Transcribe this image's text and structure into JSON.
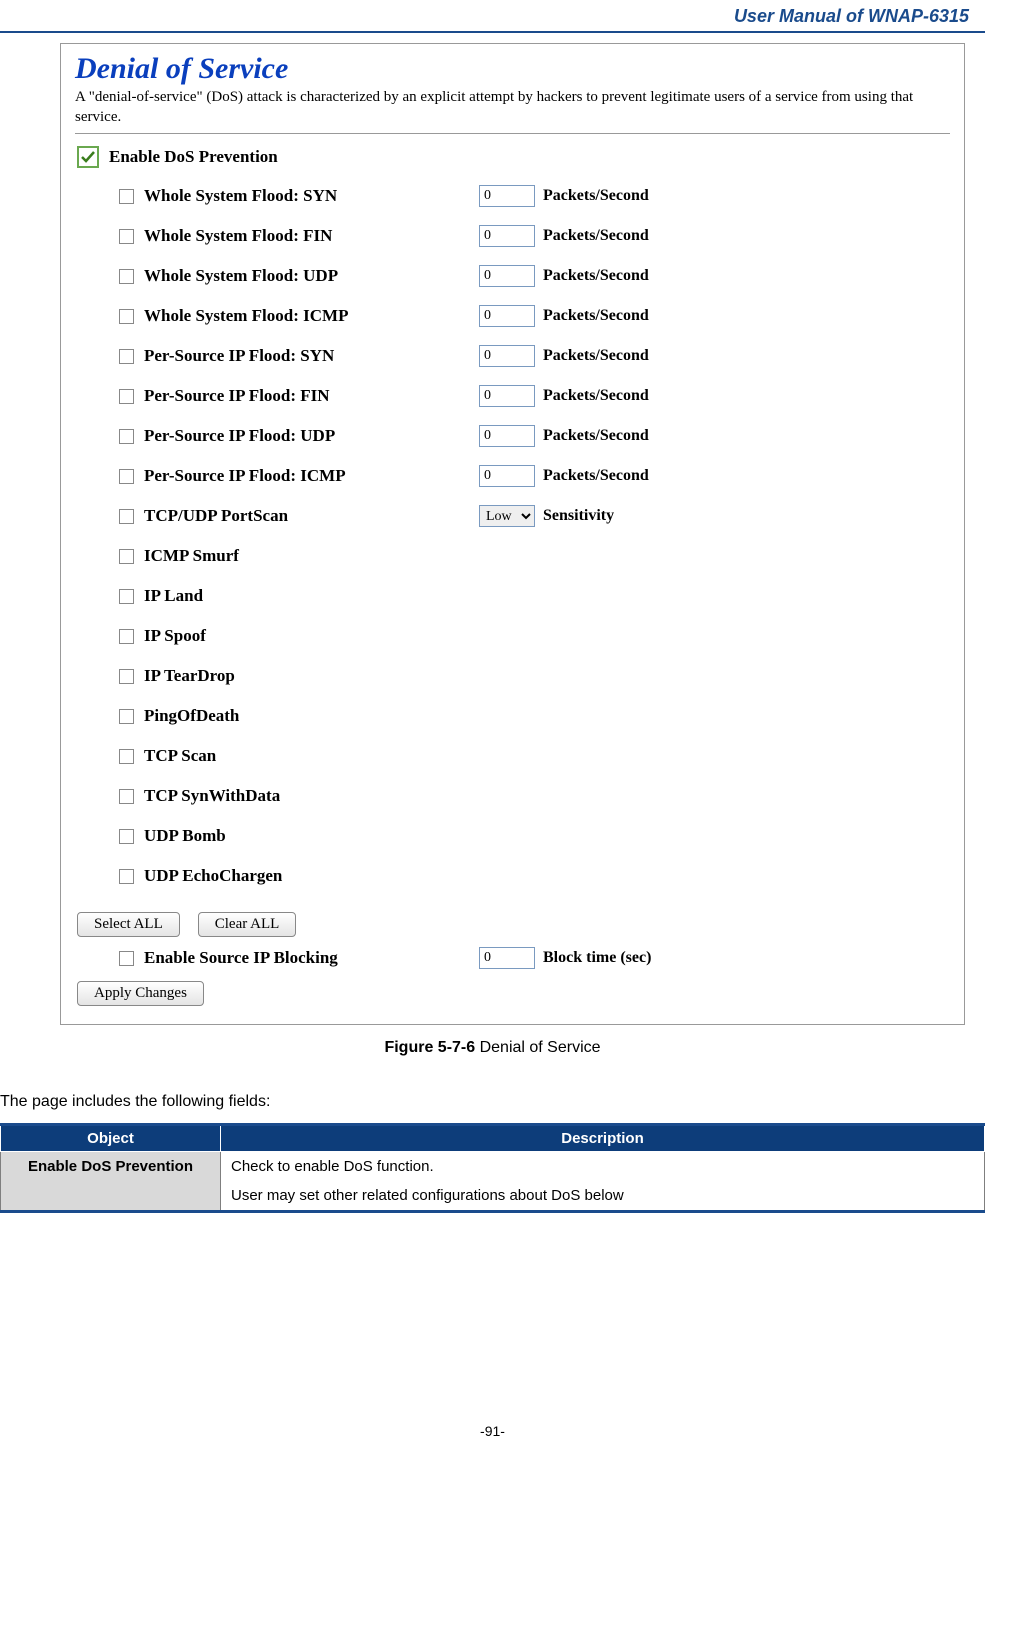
{
  "header": {
    "title": "User Manual of WNAP-6315"
  },
  "panel": {
    "title": "Denial of Service",
    "description": "A \"denial-of-service\" (DoS) attack is characterized by an explicit attempt by hackers to prevent legitimate users of a service from using that service.",
    "enable_label": "Enable DoS Prevention",
    "enable_checked": true,
    "packets_unit": "Packets/Second",
    "sensitivity_label": "Sensitivity",
    "sensitivity_value": "Low",
    "items": [
      {
        "label": "Whole System Flood: SYN",
        "value": "0",
        "has_value": true,
        "unit": "Packets/Second"
      },
      {
        "label": "Whole System Flood: FIN",
        "value": "0",
        "has_value": true,
        "unit": "Packets/Second"
      },
      {
        "label": "Whole System Flood: UDP",
        "value": "0",
        "has_value": true,
        "unit": "Packets/Second"
      },
      {
        "label": "Whole System Flood: ICMP",
        "value": "0",
        "has_value": true,
        "unit": "Packets/Second"
      },
      {
        "label": "Per-Source IP Flood: SYN",
        "value": "0",
        "has_value": true,
        "unit": "Packets/Second"
      },
      {
        "label": "Per-Source IP Flood: FIN",
        "value": "0",
        "has_value": true,
        "unit": "Packets/Second"
      },
      {
        "label": "Per-Source IP Flood: UDP",
        "value": "0",
        "has_value": true,
        "unit": "Packets/Second"
      },
      {
        "label": "Per-Source IP Flood: ICMP",
        "value": "0",
        "has_value": true,
        "unit": "Packets/Second"
      },
      {
        "label": "TCP/UDP PortScan",
        "has_select": true
      },
      {
        "label": "ICMP Smurf"
      },
      {
        "label": "IP Land"
      },
      {
        "label": "IP Spoof"
      },
      {
        "label": "IP TearDrop"
      },
      {
        "label": "PingOfDeath"
      },
      {
        "label": "TCP Scan"
      },
      {
        "label": "TCP SynWithData"
      },
      {
        "label": "UDP Bomb"
      },
      {
        "label": "UDP EchoChargen"
      }
    ],
    "buttons": {
      "select_all": "Select ALL",
      "clear_all": "Clear ALL",
      "apply": "Apply Changes"
    },
    "block": {
      "label": "Enable Source IP Blocking",
      "value": "0",
      "unit": "Block time (sec)"
    }
  },
  "caption": {
    "bold": "Figure 5-7-6",
    "rest": " Denial of Service"
  },
  "lead": "The page includes the following fields:",
  "table": {
    "headers": {
      "object": "Object",
      "description": "Description"
    },
    "row": {
      "object": "Enable DoS Prevention",
      "desc_line1": "Check to enable DoS function.",
      "desc_line2": "User may set other related configurations about DoS below"
    }
  },
  "footer": "-91-"
}
